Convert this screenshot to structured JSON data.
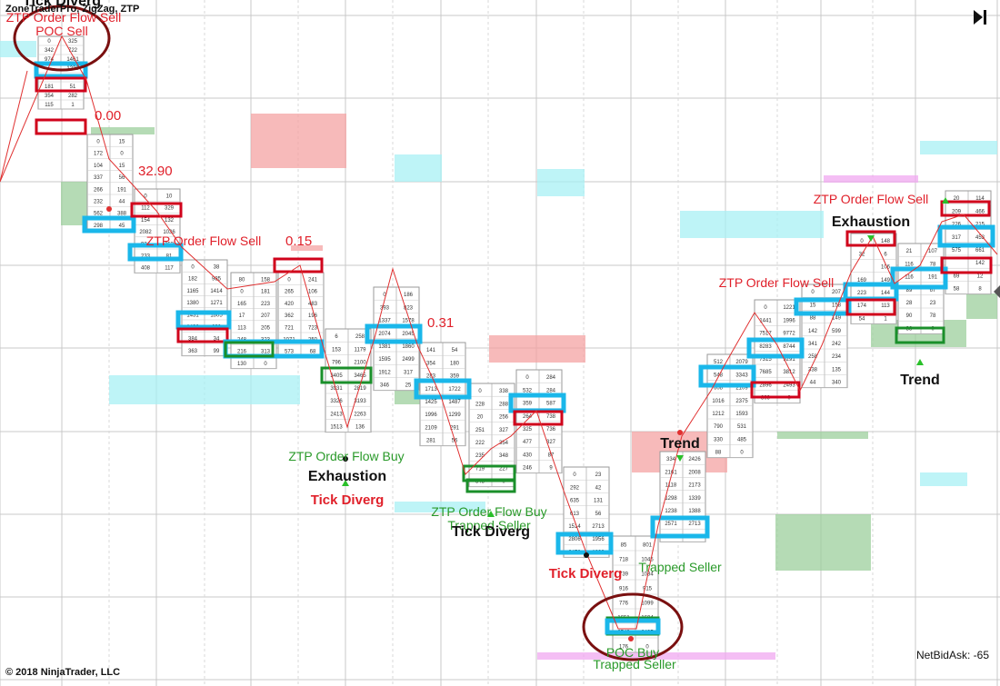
{
  "header": {
    "indicators": "ZoneTraderPro, ZigZag, ZTP"
  },
  "footer": {
    "copyright": "© 2018 NinjaTrader, LLC",
    "netbidask": "NetBidAsk: -65"
  },
  "colors": {
    "up_box": "#1ab7ea",
    "down_box": "#d0021b",
    "buy_box": "#1a8f2a",
    "sell_text": "#e0202a",
    "buy_text": "#2a9a2a",
    "zigzag": "#e03030",
    "zone_red": "#f4a3a3",
    "zone_cyan": "#a8f0f4",
    "zone_green": "#9ccf9c",
    "zone_magenta": "#f0a8f0"
  },
  "chart_data": {
    "type": "footprint",
    "bars": [
      {
        "cells": [
          [
            "0",
            "325"
          ],
          [
            "342",
            "722"
          ],
          [
            "974",
            "1461"
          ],
          [
            "",
            "1230"
          ],
          [
            "540",
            "168"
          ],
          [
            "181",
            "51"
          ],
          [
            "354",
            "282"
          ],
          [
            "115",
            "1"
          ]
        ]
      },
      {
        "cells": [
          [
            "0",
            "15"
          ],
          [
            "172",
            "0"
          ],
          [
            "104",
            "15"
          ],
          [
            "337",
            "56"
          ],
          [
            "266",
            "191"
          ],
          [
            "232",
            "44"
          ],
          [
            "562",
            "388"
          ],
          [
            "298",
            "45"
          ]
        ]
      },
      {
        "cells": [
          [
            "0",
            "10"
          ],
          [
            "112",
            "329"
          ],
          [
            "154",
            "132"
          ],
          [
            "2082",
            "1036"
          ],
          [
            "924",
            "253"
          ],
          [
            "233",
            "81"
          ],
          [
            "408",
            "117"
          ]
        ]
      },
      {
        "cells": [
          [
            "0",
            "38"
          ],
          [
            "182",
            "985"
          ],
          [
            "1165",
            "1414"
          ],
          [
            "1380",
            "1271"
          ],
          [
            "1431",
            "1805"
          ],
          [
            "1426",
            "690"
          ],
          [
            "384",
            "34"
          ],
          [
            "363",
            "99"
          ]
        ]
      },
      {
        "cells": [
          [
            "80",
            "158"
          ],
          [
            "0",
            "181"
          ],
          [
            "165",
            "223"
          ],
          [
            "17",
            "207"
          ],
          [
            "113",
            "205"
          ],
          [
            "248",
            "323"
          ],
          [
            "216",
            "313"
          ],
          [
            "130",
            "0"
          ]
        ]
      },
      {
        "cells": [
          [
            "0",
            "241"
          ],
          [
            "265",
            "106"
          ],
          [
            "420",
            "483"
          ],
          [
            "362",
            "196"
          ],
          [
            "721",
            "723"
          ],
          [
            "1071",
            "250"
          ],
          [
            "573",
            "68"
          ]
        ]
      },
      {
        "cells": [
          [
            "6",
            "258"
          ],
          [
            "153",
            "1179"
          ],
          [
            "796",
            "2100"
          ],
          [
            "3405",
            "3465"
          ],
          [
            "3931",
            "2819"
          ],
          [
            "3326",
            "3193"
          ],
          [
            "2413",
            "2263"
          ],
          [
            "1513",
            "136"
          ]
        ]
      },
      {
        "cells": [
          [
            "0",
            "186"
          ],
          [
            "393",
            "823"
          ],
          [
            "1337",
            "1578"
          ],
          [
            "2074",
            "2045"
          ],
          [
            "1381",
            "1860"
          ],
          [
            "1595",
            "2499"
          ],
          [
            "1912",
            "317"
          ],
          [
            "346",
            "25"
          ]
        ]
      },
      {
        "cells": [
          [
            "141",
            "54"
          ],
          [
            "354",
            "180"
          ],
          [
            "283",
            "359"
          ],
          [
            "1713",
            "1722"
          ],
          [
            "1425",
            "1487"
          ],
          [
            "1996",
            "1299"
          ],
          [
            "2109",
            "291"
          ],
          [
            "281",
            "56"
          ]
        ]
      },
      {
        "cells": [
          [
            "0",
            "338"
          ],
          [
            "228",
            "288"
          ],
          [
            "20",
            "256"
          ],
          [
            "251",
            "327"
          ],
          [
            "222",
            "354"
          ],
          [
            "235",
            "348"
          ],
          [
            "719",
            "227"
          ],
          [
            "545",
            "0"
          ]
        ]
      },
      {
        "cells": [
          [
            "0",
            "284"
          ],
          [
            "532",
            "284"
          ],
          [
            "359",
            "587"
          ],
          [
            "264",
            "738"
          ],
          [
            "325",
            "736"
          ],
          [
            "477",
            "327"
          ],
          [
            "430",
            "87"
          ],
          [
            "246",
            "9"
          ]
        ]
      },
      {
        "cells": [
          [
            "0",
            "23"
          ],
          [
            "292",
            "42"
          ],
          [
            "635",
            "131"
          ],
          [
            "613",
            "56"
          ],
          [
            "1514",
            "2713"
          ],
          [
            "2806",
            "1956"
          ],
          [
            "2458",
            "1839"
          ]
        ]
      },
      {
        "cells": [
          [
            "85",
            "801"
          ],
          [
            "718",
            "1045"
          ],
          [
            "739",
            "1084"
          ],
          [
            "916",
            "915"
          ],
          [
            "776",
            "1099"
          ],
          [
            "1651",
            "1604"
          ],
          [
            "2543",
            "2425"
          ],
          [
            "176",
            "0"
          ]
        ]
      },
      {
        "cells": [
          [
            "334",
            "2426"
          ],
          [
            "2161",
            "2008"
          ],
          [
            "1118",
            "2173"
          ],
          [
            "1298",
            "1339"
          ],
          [
            "1238",
            "1388"
          ],
          [
            "2571",
            "2713"
          ],
          [
            "782",
            "0"
          ]
        ]
      },
      {
        "cells": [
          [
            "512",
            "2079"
          ],
          [
            "548",
            "3343"
          ],
          [
            "608",
            "2109"
          ],
          [
            "1016",
            "2375"
          ],
          [
            "1212",
            "1593"
          ],
          [
            "790",
            "531"
          ],
          [
            "330",
            "485"
          ],
          [
            "88",
            "0"
          ]
        ]
      },
      {
        "cells": [
          [
            "0",
            "1221"
          ],
          [
            "1441",
            "1996"
          ],
          [
            "7517",
            "9772"
          ],
          [
            "8283",
            "8744"
          ],
          [
            "7315",
            "9291"
          ],
          [
            "7685",
            "3812"
          ],
          [
            "2896",
            "2493"
          ],
          [
            "809",
            "0"
          ]
        ]
      },
      {
        "cells": [
          [
            "0",
            "207"
          ],
          [
            "15",
            "158"
          ],
          [
            "88",
            "149"
          ],
          [
            "142",
            "599"
          ],
          [
            "341",
            "242"
          ],
          [
            "258",
            "234"
          ],
          [
            "338",
            "135"
          ],
          [
            "44",
            "340"
          ]
        ]
      },
      {
        "cells": [
          [
            "0",
            "148"
          ],
          [
            "32",
            "6"
          ],
          [
            "",
            "106"
          ],
          [
            "169",
            "149"
          ],
          [
            "223",
            "144"
          ],
          [
            "174",
            "113"
          ],
          [
            "54",
            "1"
          ]
        ]
      },
      {
        "cells": [
          [
            "21",
            "107"
          ],
          [
            "116",
            "78"
          ],
          [
            "116",
            "191"
          ],
          [
            "89",
            "67"
          ],
          [
            "28",
            "23"
          ],
          [
            "90",
            "78"
          ],
          [
            "38",
            "0"
          ]
        ]
      },
      {
        "cells": [
          [
            "20",
            "114"
          ],
          [
            "209",
            "466"
          ],
          [
            "226",
            "215"
          ],
          [
            "317",
            "453"
          ],
          [
            "575",
            "661"
          ],
          [
            "",
            "142"
          ],
          [
            "69",
            "12"
          ],
          [
            "58",
            "8"
          ]
        ]
      }
    ],
    "zigzag_labels": [
      "0.00",
      "32.90",
      "0.15",
      "0.31"
    ],
    "annotations": [
      {
        "text": "Tick Diverg",
        "style": "black"
      },
      {
        "text": "ZTP Order Flow Sell",
        "style": "sell"
      },
      {
        "text": "POC Sell",
        "style": "sell"
      },
      {
        "text": "ZTP Order Flow Sell",
        "style": "sell"
      },
      {
        "text": "ZTP Order Flow Buy",
        "style": "buy"
      },
      {
        "text": "Exhaustion",
        "style": "black"
      },
      {
        "text": "Tick Diverg",
        "style": "sellbold"
      },
      {
        "text": "ZTP Order Flow Buy",
        "style": "buy"
      },
      {
        "text": "Trapped Seller",
        "style": "buy"
      },
      {
        "text": "Tick Diverg",
        "style": "black"
      },
      {
        "text": "Tick Diverg",
        "style": "sellbold"
      },
      {
        "text": "Trapped Seller",
        "style": "buy"
      },
      {
        "text": "POC Buy",
        "style": "buy"
      },
      {
        "text": "Trapped Seller",
        "style": "buy"
      },
      {
        "text": "Trend",
        "style": "black"
      },
      {
        "text": "ZTP Order Flow Sell",
        "style": "sell"
      },
      {
        "text": "ZTP Order Flow Sell",
        "style": "sell"
      },
      {
        "text": "Exhaustion",
        "style": "black"
      },
      {
        "text": "Trend",
        "style": "black"
      }
    ]
  }
}
